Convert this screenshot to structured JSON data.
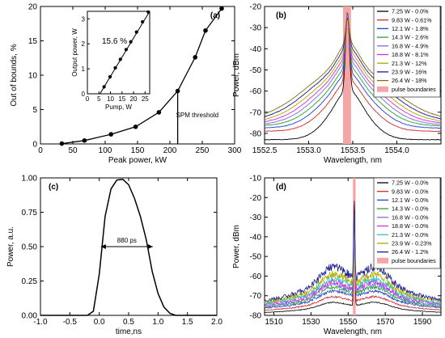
{
  "chart_data": [
    {
      "type": "scatter",
      "panel_label": "(a)",
      "xlabel": "Peak power, kW",
      "ylabel": "Out of bounds, %",
      "xlim": [
        0,
        300
      ],
      "ylim": [
        0,
        20
      ],
      "xticks": [
        0,
        50,
        100,
        150,
        200,
        250,
        300
      ],
      "yticks": [
        0,
        5,
        10,
        15,
        20
      ],
      "series": [
        {
          "x": [
            33,
            68,
            109,
            147,
            183,
            212,
            239,
            255,
            280
          ],
          "y": [
            0.05,
            0.5,
            1.4,
            2.5,
            4.6,
            7.7,
            12.6,
            16.5,
            19.7
          ],
          "color": "#000000"
        }
      ],
      "annotations": [
        {
          "text": "SPM threshold",
          "x": 212,
          "from_y": 0,
          "to_y": 7.7
        }
      ],
      "inset": {
        "type": "scatter",
        "xlabel": "Pump, W",
        "ylabel": "Output power, W",
        "xlim": [
          0,
          27
        ],
        "ylim": [
          0,
          3.3
        ],
        "xticks": [
          0,
          5,
          10,
          15,
          20,
          25
        ],
        "yticks": [
          0,
          1,
          2,
          3
        ],
        "annotation": "15.6 %",
        "points": {
          "x": [
            7.25,
            9.83,
            12.1,
            14.3,
            16.8,
            18.8,
            21.3,
            23.9,
            26.4
          ],
          "y": [
            0.28,
            0.68,
            1.04,
            1.38,
            1.77,
            2.08,
            2.47,
            2.88,
            3.27
          ]
        },
        "fit": {
          "x": [
            5.45,
            27
          ],
          "y": [
            0,
            3.36
          ]
        }
      }
    },
    {
      "type": "line",
      "panel_label": "(b)",
      "xlabel": "Wavelength, nm",
      "ylabel": "Power, dBm",
      "xlim": [
        1552.5,
        1554.5
      ],
      "ylim": [
        -85,
        -20
      ],
      "xticks": [
        1552.5,
        1553.0,
        1553.5,
        1554.0
      ],
      "yticks": [
        -80,
        -70,
        -60,
        -50,
        -40,
        -30,
        -20
      ],
      "pulse_band": [
        1553.39,
        1553.48
      ],
      "pulse_band_color": "#f4a6a6",
      "legend": [
        "7.25 W - 0.0%",
        "9.83 W - 0.61%",
        "12.1 W - 1.8%",
        "14.3 W - 2.6%",
        "16.8 W - 4.9%",
        "18.8 W - 8.1%",
        "21.3 W - 12%",
        "23.9 W - 16%",
        "26.4 W - 18%",
        "pulse boundaries"
      ],
      "series": [
        {
          "name": "7.25 W - 0.0%",
          "color": "#000000",
          "floor": -83,
          "side": -65,
          "wing": 0.32,
          "peak": -23
        },
        {
          "name": "9.83 W - 0.61%",
          "color": "#d62728",
          "floor": -79,
          "side": -61,
          "wing": 0.38,
          "peak": -23
        },
        {
          "name": "12.1 W - 1.8%",
          "color": "#1f3fd6",
          "floor": -77.5,
          "side": -58,
          "wing": 0.42,
          "peak": -23
        },
        {
          "name": "14.3 W - 2.6%",
          "color": "#2ca02c",
          "floor": -76.5,
          "side": -56,
          "wing": 0.46,
          "peak": -23.5
        },
        {
          "name": "16.8 W - 4.9%",
          "color": "#7b68ee",
          "floor": -76,
          "side": -54,
          "wing": 0.5,
          "peak": -24
        },
        {
          "name": "18.8 W - 8.1%",
          "color": "#d62fd6",
          "floor": -75.5,
          "side": -52.5,
          "wing": 0.54,
          "peak": -24.5
        },
        {
          "name": "21.3 W - 12%",
          "color": "#aaaa00",
          "floor": -75,
          "side": -51,
          "wing": 0.58,
          "peak": -25
        },
        {
          "name": "23.9 W - 16%",
          "color": "#1a1a8c",
          "floor": -74.5,
          "side": -49.5,
          "wing": 0.62,
          "peak": -25.5
        },
        {
          "name": "26.4 W - 18%",
          "color": "#8b6914",
          "floor": -74,
          "side": -48,
          "wing": 0.66,
          "peak": -26
        }
      ]
    },
    {
      "type": "line",
      "panel_label": "(c)",
      "xlabel": "time,ns",
      "ylabel": "Power, a.u.",
      "xlim": [
        -1.0,
        2.0
      ],
      "ylim": [
        0,
        1.0
      ],
      "xticks": [
        -1.0,
        -0.5,
        0.0,
        0.5,
        1.0,
        1.5,
        2.0
      ],
      "yticks": [
        0,
        0.25,
        0.5,
        0.75,
        1.0
      ],
      "series": [
        {
          "x": [
            -1.0,
            -0.2,
            -0.1,
            0.0,
            0.1,
            0.2,
            0.3,
            0.4,
            0.5,
            0.6,
            0.7,
            0.8,
            0.9,
            1.0,
            1.1,
            1.2,
            1.3,
            2.0
          ],
          "y": [
            0,
            0,
            0.03,
            0.3,
            0.72,
            0.92,
            0.985,
            0.99,
            0.95,
            0.85,
            0.72,
            0.55,
            0.32,
            0.16,
            0.06,
            0.015,
            0,
            0
          ],
          "color": "#000000"
        }
      ],
      "fwhm": {
        "text": "880 ps",
        "x1": 0.03,
        "x2": 0.91,
        "y": 0.5
      }
    },
    {
      "type": "line",
      "panel_label": "(d)",
      "xlabel": "Wavelength, nm",
      "ylabel": "Power, dBm",
      "xlim": [
        1505,
        1600
      ],
      "ylim": [
        -80,
        -10
      ],
      "xticks": [
        1510,
        1530,
        1550,
        1570,
        1590
      ],
      "yticks": [
        -80,
        -70,
        -60,
        -50,
        -40,
        -30,
        -20,
        -10
      ],
      "pulse_band": [
        1552.6,
        1554.0
      ],
      "pulse_band_color": "#f4a6a6",
      "legend": [
        "7.25 W - 0.0%",
        "9.83 W - 0.0%",
        "12.1 W - 0.0%",
        "14.3 W - 0.0%",
        "16.8 W - 0.0%",
        "18.8 W - 0.0%",
        "21.3 W - 0.0%",
        "23.9 W - 0.23%",
        "26.4 W - 1.2%",
        "pulse boundaries"
      ],
      "series": [
        {
          "name": "7.25 W - 0.0%",
          "color": "#000000",
          "floor": -79,
          "peak_level": -73,
          "peak": -20
        },
        {
          "name": "9.83 W - 0.0%",
          "color": "#d62728",
          "floor": -78,
          "peak_level": -70,
          "peak": -20
        },
        {
          "name": "12.1 W - 0.0%",
          "color": "#1f3fd6",
          "floor": -77,
          "peak_level": -67,
          "peak": -20
        },
        {
          "name": "14.3 W - 0.0%",
          "color": "#2ca02c",
          "floor": -76.5,
          "peak_level": -65,
          "peak": -20
        },
        {
          "name": "16.8 W - 0.0%",
          "color": "#7b68ee",
          "floor": -76,
          "peak_level": -63.5,
          "peak": -20
        },
        {
          "name": "18.8 W - 0.0%",
          "color": "#d62fd6",
          "floor": -75.5,
          "peak_level": -62,
          "peak": -20
        },
        {
          "name": "21.3 W - 0.0%",
          "color": "#2ec4c4",
          "floor": -75,
          "peak_level": -60.5,
          "peak": -20
        },
        {
          "name": "23.9 W - 0.23%",
          "color": "#aaaa00",
          "floor": -74.5,
          "peak_level": -58,
          "peak": -20
        },
        {
          "name": "26.4 W - 1.2%",
          "color": "#1a1a8c",
          "floor": -74,
          "peak_level": -54,
          "peak": -20
        }
      ]
    }
  ]
}
